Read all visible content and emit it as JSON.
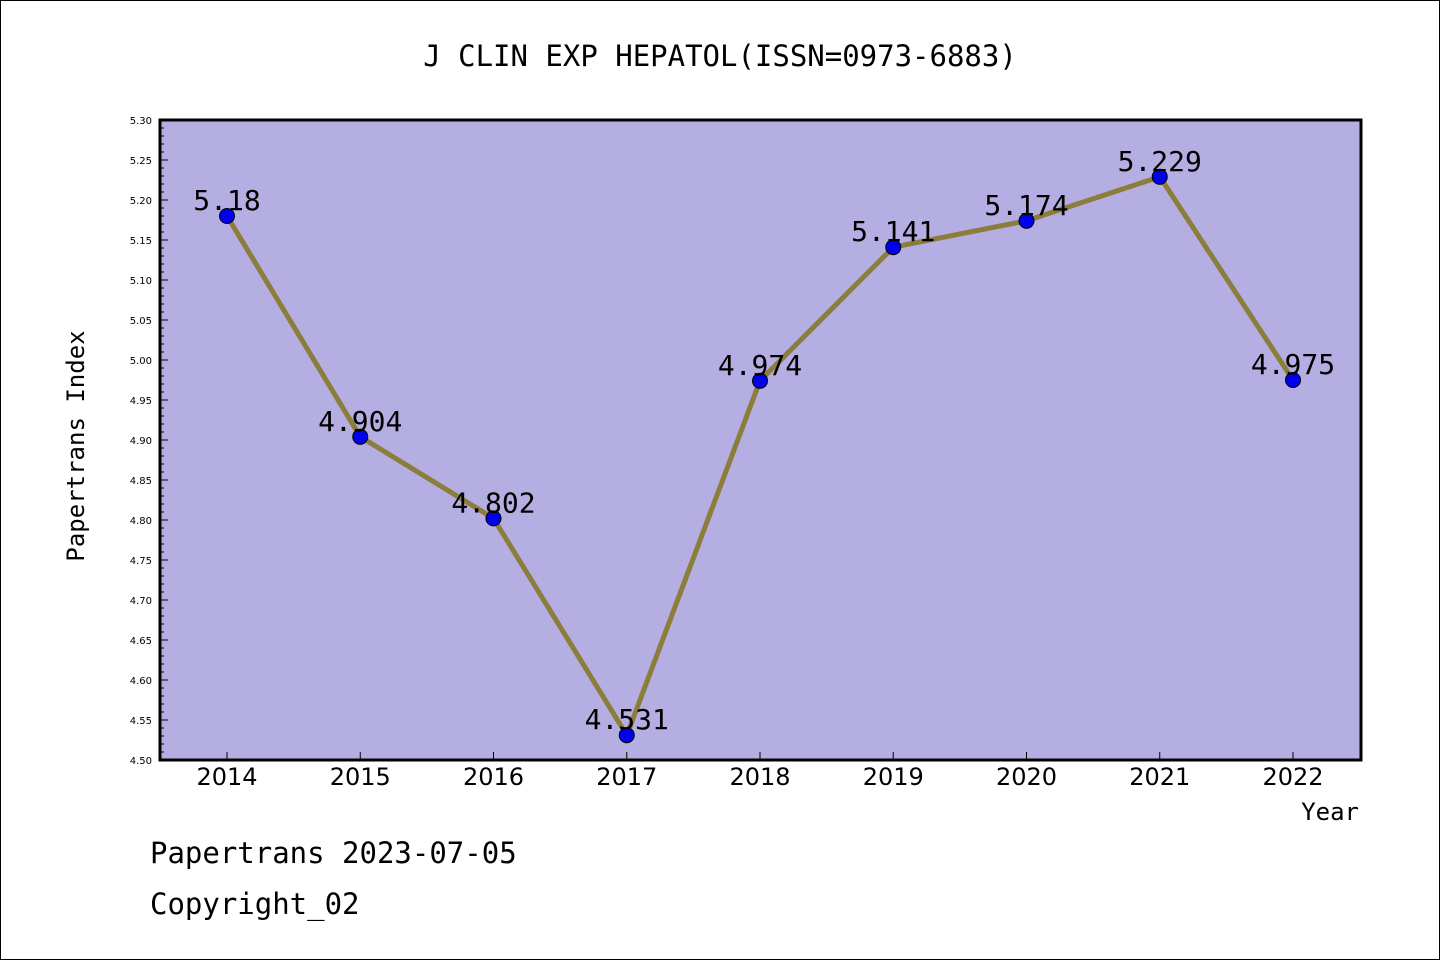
{
  "chart_data": {
    "type": "line",
    "title": "J CLIN EXP HEPATOL(ISSN=0973-6883)",
    "xlabel": "Year",
    "ylabel": "Papertrans Index",
    "categories": [
      "2014",
      "2015",
      "2016",
      "2017",
      "2018",
      "2019",
      "2020",
      "2021",
      "2022"
    ],
    "values": [
      5.18,
      4.904,
      4.802,
      4.531,
      4.974,
      5.141,
      5.174,
      5.229,
      4.975
    ],
    "data_labels": [
      "5.18",
      "4.904",
      "4.802",
      "4.531",
      "4.974",
      "5.141",
      "5.174",
      "5.229",
      "4.975"
    ],
    "ylim": [
      4.5,
      5.3
    ],
    "yticks": [
      "4.50",
      "4.55",
      "4.60",
      "4.65",
      "4.70",
      "4.75",
      "4.80",
      "4.85",
      "4.90",
      "4.95",
      "5.00",
      "5.05",
      "5.10",
      "5.15",
      "5.20",
      "5.25",
      "5.30"
    ],
    "grid": false,
    "colors": {
      "plot_background": "#b4aee2",
      "line": "#8b7d3a",
      "marker": "#0000ee"
    }
  },
  "footer": {
    "line1": "Papertrans 2023-07-05",
    "line2": "Copyright_02"
  }
}
